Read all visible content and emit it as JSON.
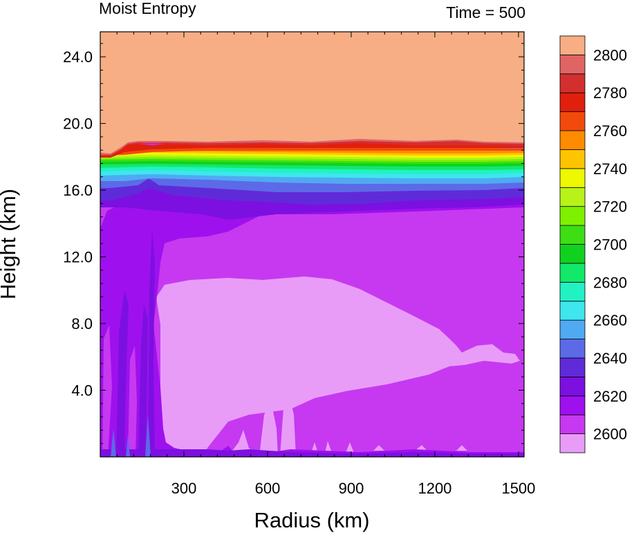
{
  "chart_data": {
    "type": "heatmap",
    "title": "Moist Entropy",
    "subtitle": "Time = 500",
    "xlabel": "Radius (km)",
    "ylabel": "Height (km)",
    "xlim": [
      0,
      1520
    ],
    "ylim": [
      0,
      25.5
    ],
    "xticks": [
      300,
      600,
      900,
      1200,
      1500
    ],
    "xtick_labels": [
      "300",
      "600",
      "900",
      "1200",
      "1500"
    ],
    "yticks": [
      4,
      8,
      12,
      16,
      20,
      24
    ],
    "ytick_labels": [
      "4.0",
      "8.0",
      "12.0",
      "16.0",
      "20.0",
      "24.0"
    ],
    "colorbar": {
      "levels": [
        2600,
        2610,
        2620,
        2630,
        2640,
        2650,
        2660,
        2670,
        2680,
        2690,
        2700,
        2710,
        2720,
        2730,
        2740,
        2750,
        2760,
        2770,
        2780,
        2790,
        2800
      ],
      "labels": [
        "2600",
        "2620",
        "2640",
        "2660",
        "2680",
        "2700",
        "2720",
        "2740",
        "2760",
        "2780",
        "2800"
      ],
      "colors": [
        "#E89CF8",
        "#C639F0",
        "#9F10EE",
        "#7C10E0",
        "#5F2BD8",
        "#5C6AE8",
        "#4FAAF2",
        "#3EE6EE",
        "#22F2C2",
        "#12E86A",
        "#10D21E",
        "#3DDE14",
        "#7EF000",
        "#B8F218",
        "#EEF800",
        "#FFC400",
        "#FF8C00",
        "#F24A0C",
        "#E0200C",
        "#D2302E",
        "#E06464",
        "#F7AE84"
      ]
    },
    "field_summary": {
      "upper_layer_above_18.5km": 2800,
      "transition_band_km": [
        15.5,
        18.5
      ],
      "mid_level_km_9_to_15": 2610,
      "low_level_pocket_value": 2600,
      "surface_core_value": 2620
    },
    "grid": false
  }
}
